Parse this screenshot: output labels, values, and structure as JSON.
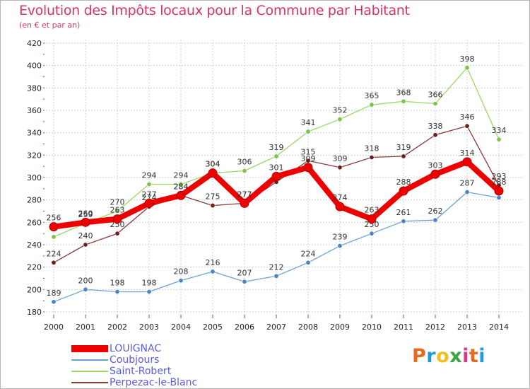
{
  "header": {
    "title": "Evolution des Impôts locaux pour la Commune par Habitant",
    "subtitle": "(en € et par an)"
  },
  "brand": {
    "text": "Proxiti",
    "letter_colors": [
      "#e46b1f",
      "#1f9ad9",
      "#f0c020",
      "#3aa641",
      "#d93b8a",
      "#e46b1f",
      "#1f9ad9"
    ]
  },
  "colors": {
    "title": "#d7336b",
    "legend_text": "#5b5be0",
    "grid": "#d0d0d0",
    "axis_red_ticks": "#d0334a"
  },
  "chart_data": {
    "type": "line",
    "title": "Evolution des Impôts locaux pour la Commune par Habitant",
    "subtitle": "(en € et par an)",
    "xlabel": "",
    "ylabel": "",
    "x": [
      "2000",
      "2001",
      "2002",
      "2003",
      "2004",
      "2005",
      "2006",
      "2007",
      "2008",
      "2009",
      "2010",
      "2011",
      "2012",
      "2013",
      "2014"
    ],
    "ylim": [
      180,
      420
    ],
    "yticks": [
      180,
      200,
      220,
      240,
      260,
      280,
      300,
      320,
      340,
      360,
      380,
      400,
      420
    ],
    "grid": "horizontal",
    "legend_position": "bottom-left",
    "series": [
      {
        "name": "Coubjours",
        "color": "#6aa3d4",
        "marker": "#4a86c4",
        "values": [
          189,
          200,
          198,
          198,
          208,
          216,
          207,
          212,
          224,
          239,
          250,
          261,
          262,
          287,
          282
        ],
        "labels": [
          "189",
          "200",
          "198",
          "198",
          "208",
          "216",
          "207",
          "212",
          "224",
          "239",
          "250",
          "261",
          "262",
          "287",
          ""
        ]
      },
      {
        "name": "Saint-Robert",
        "color": "#9ad86a",
        "marker": "#7cc44a",
        "values": [
          247,
          259,
          270,
          294,
          294,
          304,
          306,
          319,
          341,
          352,
          365,
          368,
          366,
          398,
          334
        ],
        "labels": [
          "",
          "259",
          "270",
          "294",
          "294",
          "304",
          "306",
          "319",
          "341",
          "352",
          "365",
          "368",
          "366",
          "398",
          "334"
        ]
      },
      {
        "name": "Perpezac-le-Blanc",
        "color": "#8b3a3a",
        "marker": "#6a1f1f",
        "values": [
          224,
          240,
          250,
          274,
          284,
          275,
          277,
          296,
          315,
          309,
          318,
          319,
          338,
          346,
          293
        ],
        "labels": [
          "224",
          "240",
          "250",
          "274",
          "284",
          "275",
          "277",
          "",
          "315",
          "309",
          "318",
          "319",
          "338",
          "346",
          "293"
        ]
      },
      {
        "name": "LOUIGNAC",
        "color": "#ee0000",
        "marker": "#ee0000",
        "values": [
          256,
          260,
          263,
          277,
          284,
          304,
          277,
          301,
          309,
          274,
          263,
          288,
          303,
          314,
          288
        ],
        "labels": [
          "256",
          "260",
          "263",
          "277",
          "284",
          "304",
          "277",
          "301",
          "309",
          "274",
          "263",
          "288",
          "303",
          "314",
          "288"
        ]
      }
    ]
  }
}
